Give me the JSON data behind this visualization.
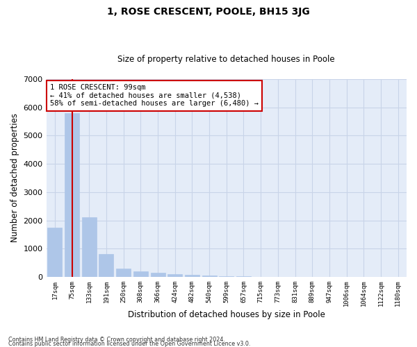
{
  "title": "1, ROSE CRESCENT, POOLE, BH15 3JG",
  "subtitle": "Size of property relative to detached houses in Poole",
  "xlabel": "Distribution of detached houses by size in Poole",
  "ylabel": "Number of detached properties",
  "categories": [
    "17sqm",
    "75sqm",
    "133sqm",
    "191sqm",
    "250sqm",
    "308sqm",
    "366sqm",
    "424sqm",
    "482sqm",
    "540sqm",
    "599sqm",
    "657sqm",
    "715sqm",
    "773sqm",
    "831sqm",
    "889sqm",
    "947sqm",
    "1006sqm",
    "1064sqm",
    "1122sqm",
    "1180sqm"
  ],
  "values": [
    1750,
    5800,
    2100,
    800,
    300,
    195,
    155,
    100,
    75,
    50,
    30,
    15,
    0,
    0,
    0,
    0,
    0,
    0,
    0,
    0,
    0
  ],
  "bar_color": "#aec6e8",
  "bar_edge_color": "#aec6e8",
  "grid_color": "#c8d4e8",
  "background_color": "#e4ecf8",
  "vline_x": 1,
  "vline_color": "#cc0000",
  "annotation_text": "1 ROSE CRESCENT: 99sqm\n← 41% of detached houses are smaller (4,538)\n58% of semi-detached houses are larger (6,480) →",
  "annotation_box_color": "#ffffff",
  "annotation_box_edge_color": "#cc0000",
  "ylim": [
    0,
    7000
  ],
  "yticks": [
    0,
    1000,
    2000,
    3000,
    4000,
    5000,
    6000,
    7000
  ],
  "footnote1": "Contains HM Land Registry data © Crown copyright and database right 2024.",
  "footnote2": "Contains public sector information licensed under the Open Government Licence v3.0."
}
